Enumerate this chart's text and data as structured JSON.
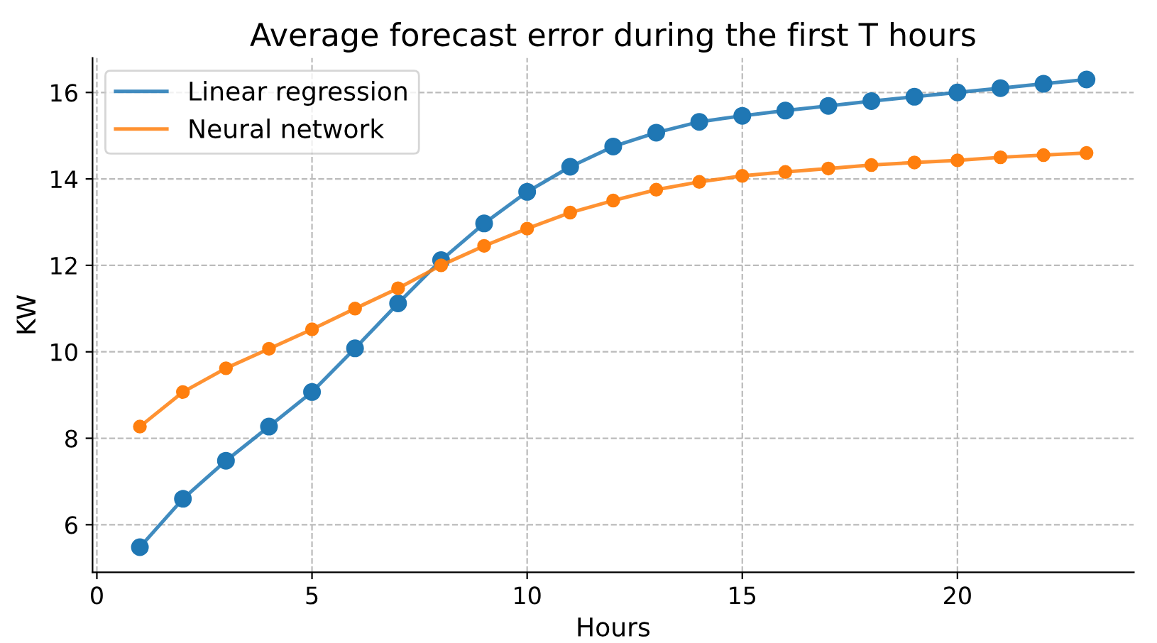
{
  "chart_data": {
    "type": "line",
    "title": "Average forecast error during the first T hours",
    "xlabel": "Hours",
    "ylabel": "KW",
    "x": [
      1,
      2,
      3,
      4,
      5,
      6,
      7,
      8,
      9,
      10,
      11,
      12,
      13,
      14,
      15,
      16,
      17,
      18,
      19,
      20,
      21,
      22,
      23
    ],
    "series": [
      {
        "name": "Linear regression",
        "color": "#1f77b4",
        "values": [
          5.48,
          6.6,
          7.48,
          8.27,
          9.07,
          10.08,
          11.12,
          12.12,
          12.97,
          13.7,
          14.28,
          14.75,
          15.07,
          15.32,
          15.46,
          15.58,
          15.69,
          15.8,
          15.9,
          16.0,
          16.1,
          16.2,
          16.3
        ]
      },
      {
        "name": "Neural network",
        "color": "#ff7f0e",
        "values": [
          8.27,
          9.07,
          9.62,
          10.07,
          10.52,
          11.0,
          11.47,
          12.0,
          12.45,
          12.85,
          13.22,
          13.5,
          13.75,
          13.93,
          14.07,
          14.16,
          14.24,
          14.32,
          14.38,
          14.43,
          14.5,
          14.55,
          14.6
        ]
      }
    ],
    "xlim": [
      -0.1,
      24.1
    ],
    "ylim": [
      4.9,
      16.8
    ],
    "xticks": [
      0,
      5,
      10,
      15,
      20
    ],
    "yticks": [
      6,
      8,
      10,
      12,
      14,
      16
    ],
    "grid": true,
    "legend": "top left",
    "marker": "circle",
    "line_style": "solid"
  }
}
